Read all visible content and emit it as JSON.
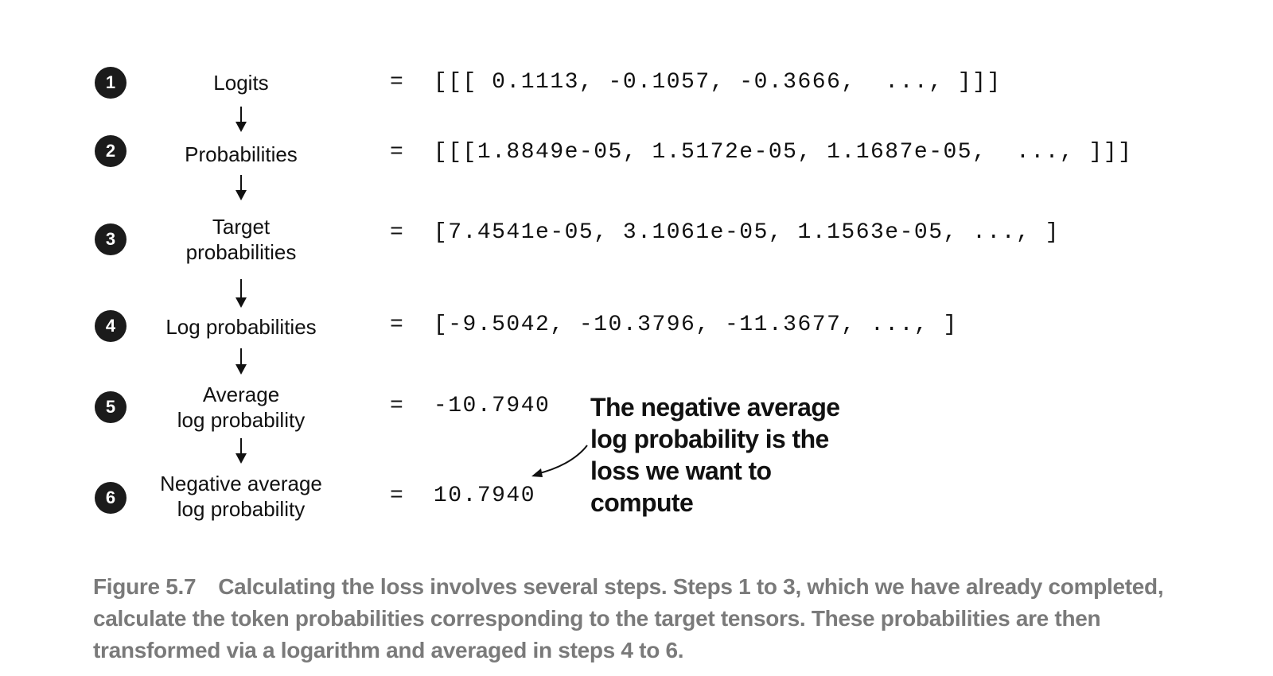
{
  "steps": [
    {
      "number": "1",
      "label": "Logits",
      "value": "=  [[[ 0.1113, -0.1057, -0.3666,  ..., ]]]"
    },
    {
      "number": "2",
      "label": "Probabilities",
      "value": "=  [[[1.8849e-05, 1.5172e-05, 1.1687e-05,  ..., ]]]"
    },
    {
      "number": "3",
      "label": "Target\nprobabilities",
      "value": "=  [7.4541e-05, 3.1061e-05, 1.1563e-05, ..., ]"
    },
    {
      "number": "4",
      "label": "Log probabilities",
      "value": "=  [-9.5042, -10.3796, -11.3677, ..., ]"
    },
    {
      "number": "5",
      "label": "Average\nlog probability",
      "value": "=  -10.7940"
    },
    {
      "number": "6",
      "label": "Negative average\nlog probability",
      "value": "=  10.7940"
    }
  ],
  "annotation": {
    "text": "The negative average\nlog probability is the\nloss we want to\ncompute"
  },
  "caption": {
    "figure_label": "Figure 5.7",
    "text": "Calculating the loss involves several steps. Steps 1 to 3, which we have already completed, calculate the token probabilities corresponding to the target tensors. These probabilities are then transformed via a logarithm and averaged in steps 4 to 6."
  },
  "colors": {
    "ink": "#111111",
    "badge": "#1b1b1b",
    "caption": "#7a7a7a"
  }
}
